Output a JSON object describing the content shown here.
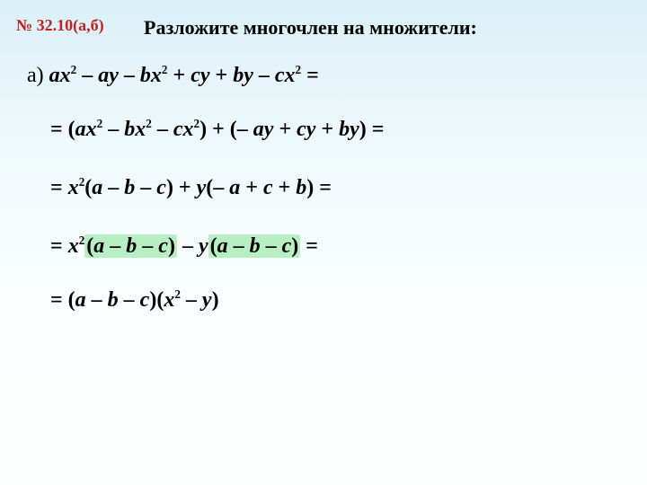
{
  "problem_number": "№ 32.10(а,б)",
  "instruction": "Разложите многочлен на множители:",
  "colors": {
    "problem_number": "#c02020",
    "text": "#000000",
    "highlight_bg": "#b7eec2",
    "bg_gradient_top": "#d9f0f7",
    "bg_gradient_bottom": "#fdfffe"
  },
  "fontsizes": {
    "problem_number": 18,
    "instruction": 22,
    "math": 24
  },
  "part_label": "а)",
  "lines": {
    "line1": {
      "tokens": [
        "a",
        "x",
        "2",
        " – ",
        "a",
        "y",
        " – ",
        "b",
        "x",
        "2",
        " + ",
        "c",
        "y",
        " + ",
        "b",
        "y",
        " – ",
        "c",
        "x",
        "2",
        " ="
      ]
    },
    "line2": {
      "prefix": "= (",
      "g1": [
        "a",
        "x",
        "2",
        " – ",
        "b",
        "x",
        "2",
        " – ",
        "c",
        "x",
        "2"
      ],
      "mid": ") + (– ",
      "g2": [
        "a",
        "y",
        " + ",
        "c",
        "y",
        " + ",
        "b",
        "y"
      ],
      "suffix": ") ="
    },
    "line3": {
      "p1": "= ",
      "x2": [
        "x",
        "2"
      ],
      "paren1_open": "(",
      "abc1": [
        "a",
        " – ",
        "b",
        " – ",
        "c"
      ],
      "paren1_close": ") + ",
      "y": "y",
      "paren2_open": "(– ",
      "abc2": [
        "a",
        " + ",
        "c",
        " + ",
        "b"
      ],
      "paren2_close": ") ="
    },
    "line4": {
      "p1": "= ",
      "x2": [
        "x",
        "2"
      ],
      "h1_open": "(",
      "h1": [
        "a",
        " – ",
        "b",
        " – ",
        "c"
      ],
      "h1_close": ")",
      "mid": " – ",
      "y": "y",
      "h2_open": "(",
      "h2": [
        "a",
        " – ",
        "b",
        " – ",
        "c"
      ],
      "h2_close": ")",
      "suffix": " ="
    },
    "line5": {
      "p1": "= (",
      "abc": [
        "a",
        " – ",
        "b",
        " – ",
        "c"
      ],
      "mid": ")(",
      "x2y": [
        "x",
        "2",
        " – ",
        "y"
      ],
      "suffix": ")"
    }
  }
}
